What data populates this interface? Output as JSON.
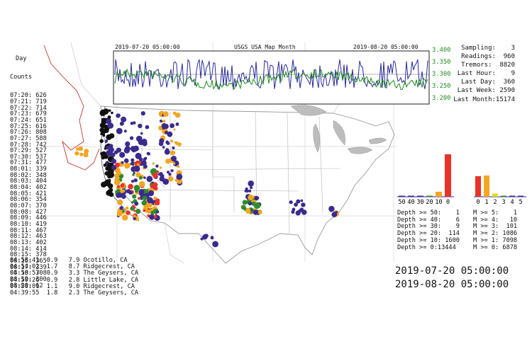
{
  "monitor": {
    "title": "USGS USA Map Month",
    "start_label": "2019-07-20 05:00:00",
    "end_label": "2019-08-20 05:00:00",
    "y_ticks": [
      "3.400",
      "3.350",
      "3.300",
      "3.250",
      "3.200"
    ]
  },
  "day_counts": {
    "header_line1": "Day",
    "header_line2": "Counts",
    "rows": [
      "07:20: 626",
      "07:21: 719",
      "07:22: 714",
      "07:23: 679",
      "07:24: 651",
      "07:25: 616",
      "07:26: 808",
      "07:27: 588",
      "07:28: 742",
      "07:29: 527",
      "07:30: 537",
      "07:31: 477",
      "08:01: 339",
      "08:02: 348",
      "08:03: 404",
      "08:04: 402",
      "08:05: 421",
      "08:06: 354",
      "08:07: 370",
      "08:08: 427",
      "08:09: 446",
      "08:10: 419",
      "08:11: 467",
      "08:12: 463",
      "08:13: 402",
      "08:14: 414",
      "08:15: 378",
      "08:16: 365",
      "08:17: 339",
      "08:18: 308",
      "08:19: 300",
      "08:20: 62"
    ]
  },
  "stats": {
    "rows": [
      "Sampling:    3",
      "Readings:  960",
      "Tremors:  8820",
      "Last Hour:    9",
      "Last Day:  360",
      "Last Week: 2590",
      "Last Month:15174"
    ]
  },
  "recent_quakes": [
    "04:58:41  0.9   7.9 Ocotillo, CA",
    "04:54:02  1.7   8.7 Ridgecrest, CA",
    "04:50:57  0.9   3.3 The Geysers, CA",
    "04:50:26  0.9   2.8 Little Lake, CA",
    "04:50:01  1.1   9.0 Ridgecrest, CA",
    "04:39:55  1.8   2.3 The Geysers, CA"
  ],
  "depth_histogram": {
    "labels": [
      "50",
      "40",
      "30",
      "20",
      "10",
      "0"
    ],
    "values": [
      1,
      6,
      9,
      114,
      1600,
      13444
    ],
    "colors": [
      "#3a2b8c",
      "#3a2b8c",
      "#3a2b8c",
      "#2e8b2e",
      "#f2a623",
      "#e8332a"
    ]
  },
  "mag_histogram": {
    "labels": [
      "0",
      "1",
      "2",
      "3",
      "4",
      "5"
    ],
    "values": [
      6878,
      7098,
      1086,
      101,
      10,
      1
    ],
    "colors": [
      "#e8332a",
      "#f2a623",
      "#dddd22",
      "#2e8b2e",
      "#3a2b8c",
      "#3a2b8c"
    ]
  },
  "depth_table": [
    "Depth >= 50:    1",
    "Depth >= 40:    6",
    "Depth >= 30:    9",
    "Depth >= 20:  114",
    "Depth >= 10: 1600",
    "Depth >= 0:13444"
  ],
  "mag_table": [
    "M >= 5:    1",
    "M >= 4:   10",
    "M >= 3:  101",
    "M >= 2: 1086",
    "M >= 1: 7098",
    "M >= 0: 6878"
  ],
  "time_range": {
    "start": "2019-07-20 05:00:00",
    "end": "2019-08-20 05:00:00"
  },
  "colors": {
    "deep": "#3a2b8c",
    "mid": "#2e8b2e",
    "shallow": "#f2a623",
    "surface": "#e8332a",
    "fault_red": "#c0392b",
    "lakes": "#bdbdbd"
  }
}
